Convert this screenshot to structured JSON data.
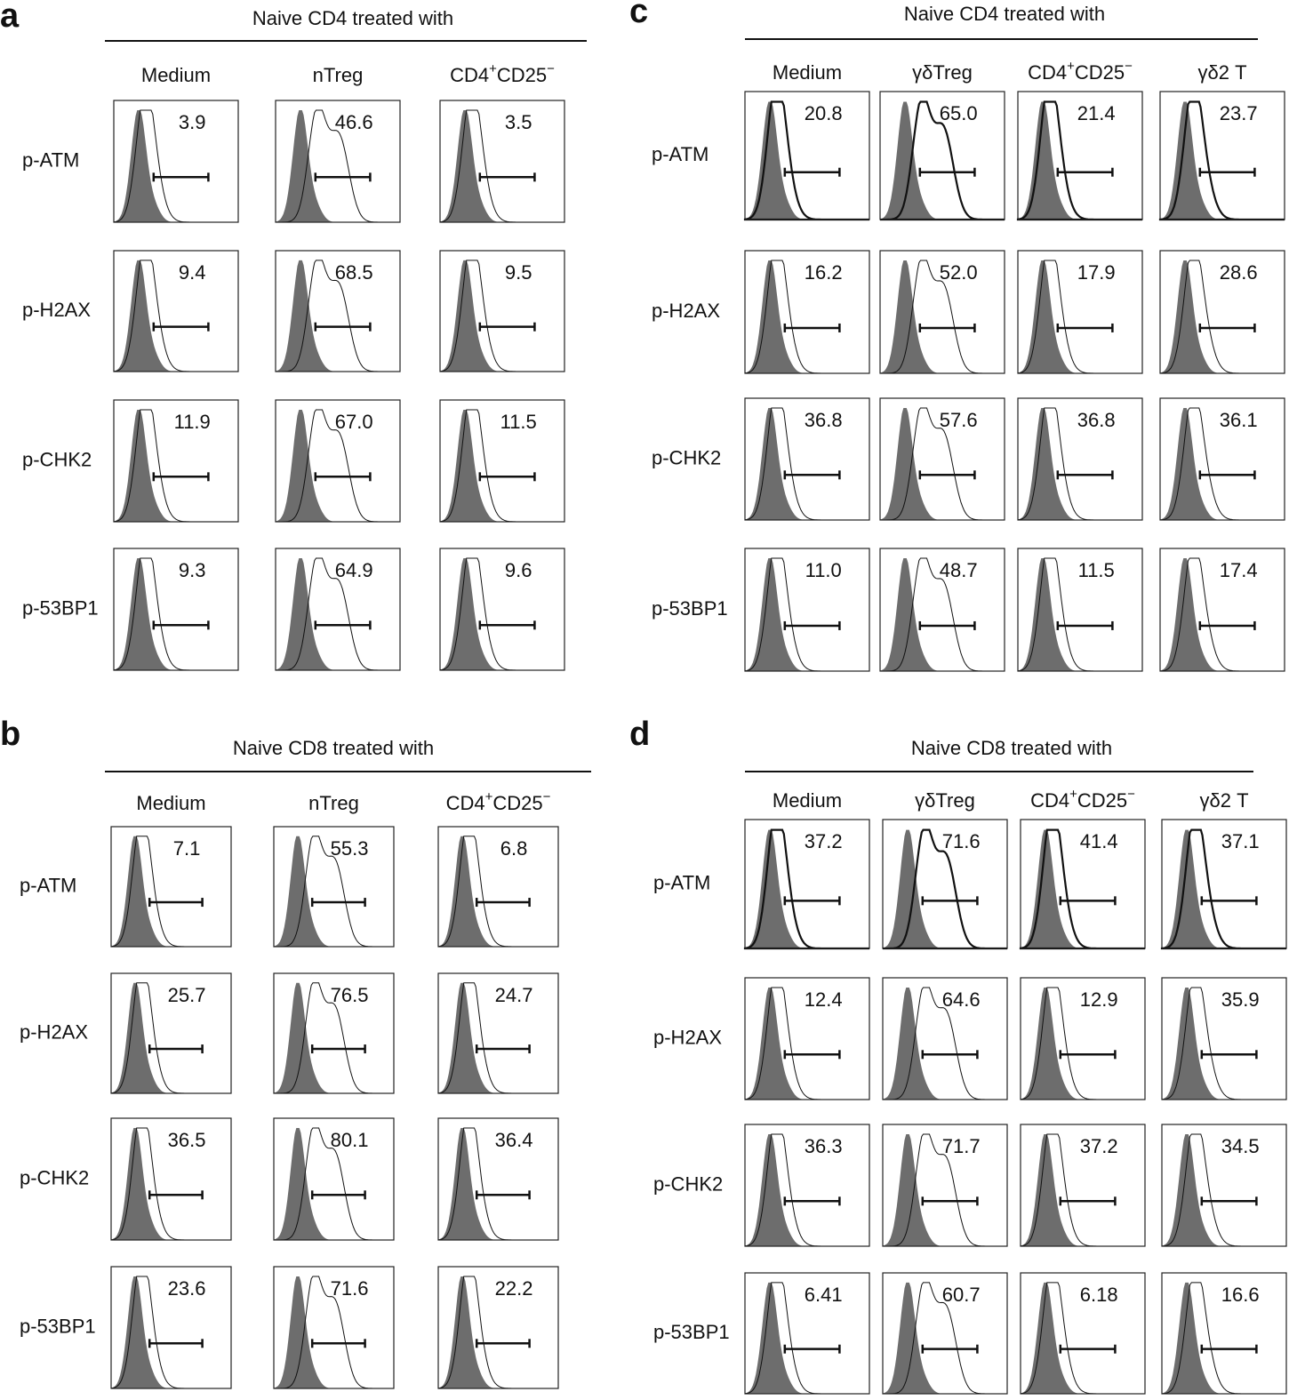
{
  "panels": [
    {
      "letter": "a",
      "title": "Naive CD4 treated with",
      "columns": [
        [
          "Medium"
        ],
        [
          "nTreg"
        ],
        [
          "CD4",
          "+",
          "CD25",
          "−"
        ]
      ],
      "rows": [
        "p-ATM",
        "p-H2AX",
        "p-CHK2",
        "p-53BP1"
      ],
      "values": [
        [
          "3.9",
          "46.6",
          "3.5"
        ],
        [
          "9.4",
          "68.5",
          "9.5"
        ],
        [
          "11.9",
          "67.0",
          "11.5"
        ],
        [
          "9.3",
          "64.9",
          "9.6"
        ]
      ]
    },
    {
      "letter": "b",
      "title": "Naive CD8 treated with",
      "columns": [
        [
          "Medium"
        ],
        [
          "nTreg"
        ],
        [
          "CD4",
          "+",
          "CD25",
          "−"
        ]
      ],
      "rows": [
        "p-ATM",
        "p-H2AX",
        "p-CHK2",
        "p-53BP1"
      ],
      "values": [
        [
          "7.1",
          "55.3",
          "6.8"
        ],
        [
          "25.7",
          "76.5",
          "24.7"
        ],
        [
          "36.5",
          "80.1",
          "36.4"
        ],
        [
          "23.6",
          "71.6",
          "22.2"
        ]
      ]
    },
    {
      "letter": "c",
      "title": "Naive CD4 treated with",
      "columns": [
        [
          "Medium"
        ],
        [
          "γδTreg"
        ],
        [
          "CD4",
          "+",
          "CD25",
          "−"
        ],
        [
          "γδ2 T"
        ]
      ],
      "rows": [
        "p-ATM",
        "p-H2AX",
        "p-CHK2",
        "p-53BP1"
      ],
      "values": [
        [
          "20.8",
          "65.0",
          "21.4",
          "23.7"
        ],
        [
          "16.2",
          "52.0",
          "17.9",
          "28.6"
        ],
        [
          "36.8",
          "57.6",
          "36.8",
          "36.1"
        ],
        [
          "11.0",
          "48.7",
          "11.5",
          "17.4"
        ]
      ]
    },
    {
      "letter": "d",
      "title": "Naive CD8 treated with",
      "columns": [
        [
          "Medium"
        ],
        [
          "γδTreg"
        ],
        [
          "CD4",
          "+",
          "CD25",
          "−"
        ],
        [
          "γδ2 T"
        ]
      ],
      "rows": [
        "p-ATM",
        "p-H2AX",
        "p-CHK2",
        "p-53BP1"
      ],
      "values": [
        [
          "37.2",
          "71.6",
          "41.4",
          "37.1"
        ],
        [
          "12.4",
          "64.6",
          "12.9",
          "35.9"
        ],
        [
          "36.3",
          "71.7",
          "37.2",
          "34.5"
        ],
        [
          "6.41",
          "60.7",
          "6.18",
          "16.6"
        ]
      ]
    }
  ]
}
